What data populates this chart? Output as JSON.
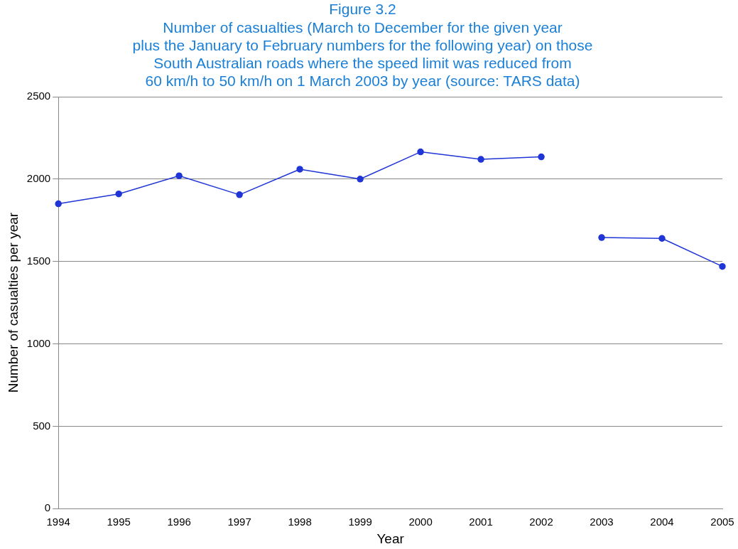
{
  "chart_data": {
    "type": "line",
    "title": "Figure 3.2",
    "subtitle": "Number of casualties (March to December for the given year\nplus the January to February numbers for the following year) on those\nSouth Australian roads where the speed limit was reduced from\n60 km/h to 50 km/h on 1 March 2003 by year (source: TARS data)",
    "xlabel": "Year",
    "ylabel": "Number of casualties per year",
    "categories": [
      "1994",
      "1995",
      "1996",
      "1997",
      "1998",
      "1999",
      "2000",
      "2001",
      "2002",
      "2003",
      "2004",
      "2005"
    ],
    "series": [
      {
        "color": "#1f35d6",
        "values": [
          1850,
          1910,
          2020,
          1905,
          2060,
          2000,
          2165,
          2120,
          2135,
          null,
          null,
          null
        ]
      },
      {
        "color": "#1f35d6",
        "values": [
          null,
          null,
          null,
          null,
          null,
          null,
          null,
          null,
          null,
          1645,
          1640,
          1470
        ]
      }
    ],
    "ylim": [
      0,
      2500
    ],
    "yticks": [
      0,
      500,
      1000,
      1500,
      2000,
      2500
    ],
    "grid": "y",
    "legend": false,
    "marker": "circle",
    "line_style": "solid"
  }
}
